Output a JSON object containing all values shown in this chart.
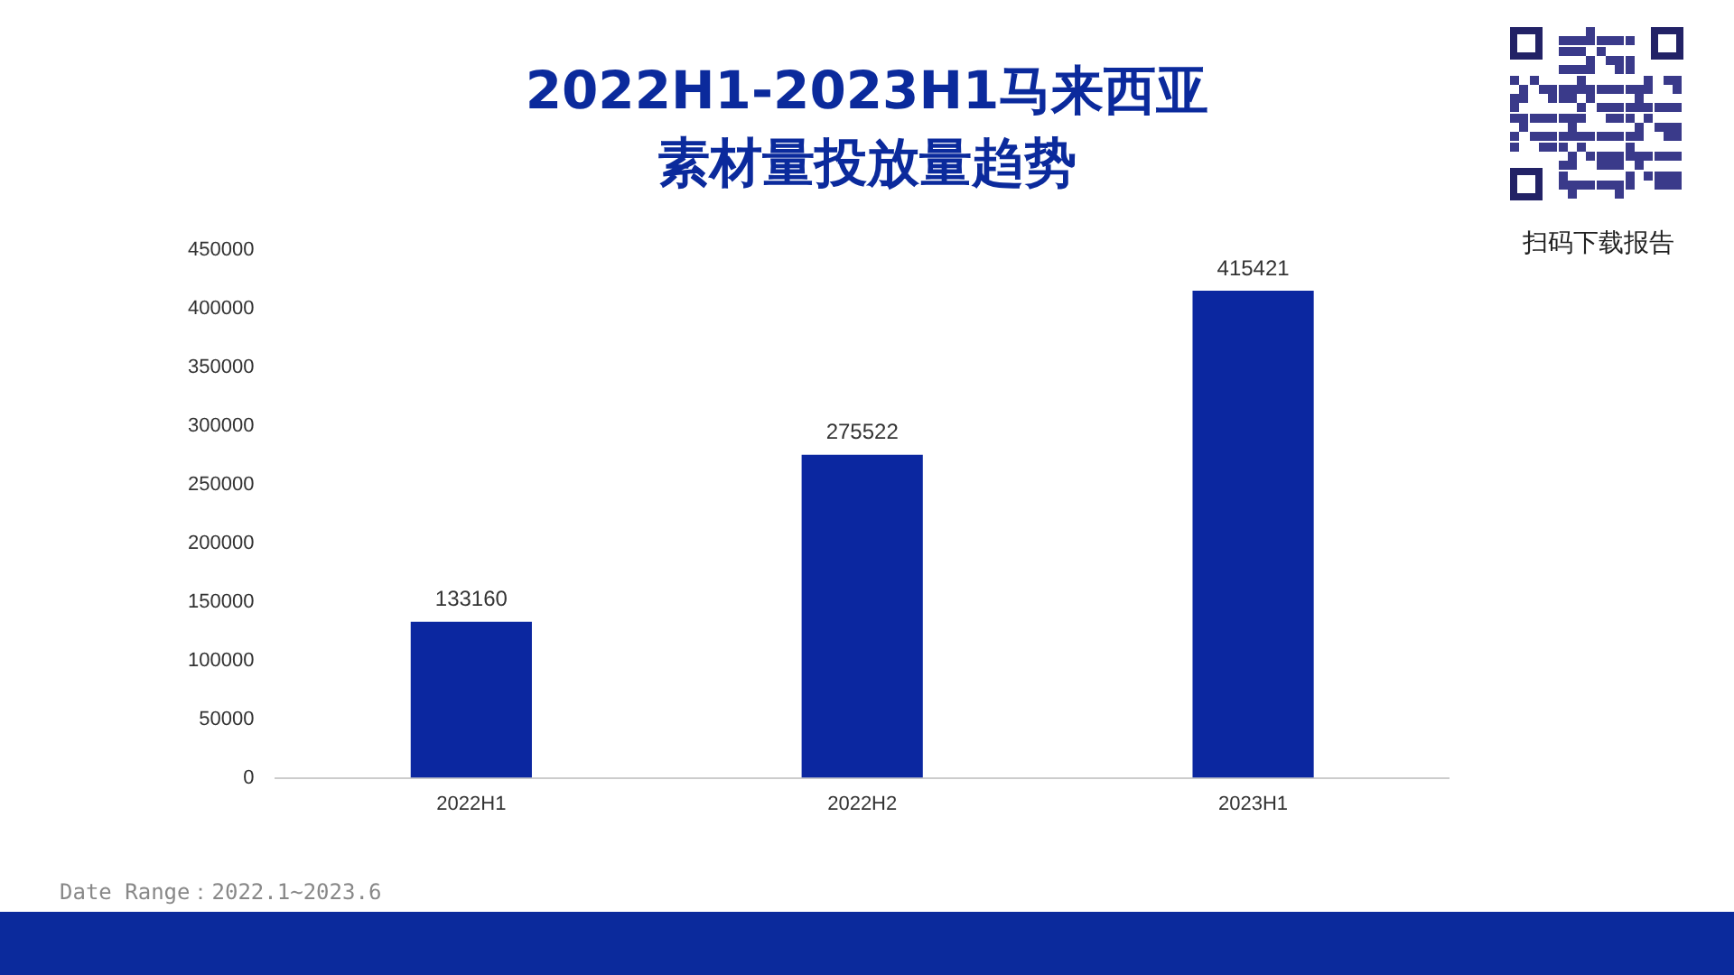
{
  "chart_data": {
    "type": "bar",
    "title": "2022H1-2023H1马来西亚素材量投放量趋势",
    "categories": [
      "2022H1",
      "2022H2",
      "2023H1"
    ],
    "values": [
      133160,
      275522,
      415421
    ],
    "color": "#0b27a0",
    "ylim": [
      0,
      450000
    ],
    "yticks": [
      0,
      50000,
      100000,
      150000,
      200000,
      250000,
      300000,
      350000,
      400000,
      450000
    ],
    "grid": false,
    "legend": false,
    "data_labels": true,
    "annotations": [
      "Date Range：2022.1~2023.6",
      "扫码下载报告"
    ]
  }
}
